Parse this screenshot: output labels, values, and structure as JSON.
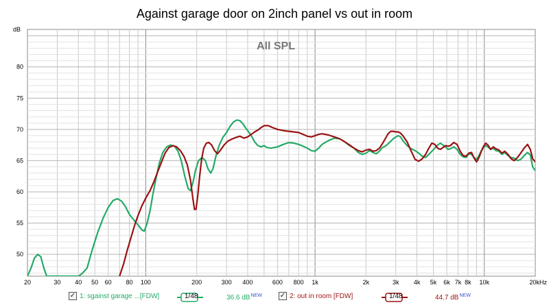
{
  "chart_data": {
    "type": "line",
    "title": "Against garage door on 2inch panel vs out in room",
    "plot_label": "All SPL",
    "ylabel": "dB",
    "xscale": "log",
    "xlim": [
      20,
      20000
    ],
    "ylim": [
      46.5,
      86
    ],
    "y_ticks": [
      50,
      55,
      60,
      65,
      70,
      75,
      80
    ],
    "x_ticks": [
      {
        "v": 20,
        "t": "20"
      },
      {
        "v": 30,
        "t": "30"
      },
      {
        "v": 40,
        "t": "40"
      },
      {
        "v": 50,
        "t": "50"
      },
      {
        "v": 60,
        "t": "60"
      },
      {
        "v": 80,
        "t": "80"
      },
      {
        "v": 100,
        "t": "100"
      },
      {
        "v": 200,
        "t": "200"
      },
      {
        "v": 300,
        "t": "300"
      },
      {
        "v": 400,
        "t": "400"
      },
      {
        "v": 600,
        "t": "600"
      },
      {
        "v": 800,
        "t": "800"
      },
      {
        "v": 1000,
        "t": "1k"
      },
      {
        "v": 2000,
        "t": "2k"
      },
      {
        "v": 3000,
        "t": "3k"
      },
      {
        "v": 4000,
        "t": "4k"
      },
      {
        "v": 5000,
        "t": "5k"
      },
      {
        "v": 6000,
        "t": "6k"
      },
      {
        "v": 7000,
        "t": "7k"
      },
      {
        "v": 8000,
        "t": "8k"
      },
      {
        "v": 10000,
        "t": "10k"
      },
      {
        "v": 20000,
        "t": "20kHz"
      }
    ],
    "grid": true,
    "series": [
      {
        "name": "1: sgainst garage ...[FDW]",
        "color": "#22aa66",
        "points": [
          [
            20,
            46.5
          ],
          [
            21,
            47.8
          ],
          [
            22,
            49.4
          ],
          [
            23,
            50.0
          ],
          [
            24,
            49.6
          ],
          [
            25,
            47.8
          ],
          [
            26,
            46.5
          ],
          [
            40,
            46.5
          ],
          [
            42,
            46.9
          ],
          [
            45,
            47.8
          ],
          [
            48,
            50.5
          ],
          [
            52,
            53.5
          ],
          [
            56,
            55.8
          ],
          [
            60,
            57.5
          ],
          [
            64,
            58.6
          ],
          [
            68,
            58.9
          ],
          [
            72,
            58.5
          ],
          [
            76,
            57.6
          ],
          [
            80,
            56.4
          ],
          [
            85,
            55.5
          ],
          [
            90,
            54.7
          ],
          [
            95,
            53.9
          ],
          [
            98,
            53.7
          ],
          [
            102,
            55.0
          ],
          [
            106,
            57.0
          ],
          [
            110,
            59.5
          ],
          [
            115,
            62.2
          ],
          [
            120,
            64.5
          ],
          [
            126,
            66.3
          ],
          [
            133,
            67.2
          ],
          [
            140,
            67.5
          ],
          [
            148,
            67.3
          ],
          [
            155,
            66.5
          ],
          [
            162,
            65.0
          ],
          [
            170,
            62.5
          ],
          [
            178,
            60.5
          ],
          [
            184,
            60.2
          ],
          [
            190,
            61.5
          ],
          [
            197,
            63.5
          ],
          [
            205,
            65.0
          ],
          [
            215,
            65.5
          ],
          [
            225,
            65.0
          ],
          [
            233,
            63.7
          ],
          [
            242,
            63.0
          ],
          [
            250,
            63.8
          ],
          [
            260,
            65.8
          ],
          [
            272,
            67.5
          ],
          [
            285,
            68.7
          ],
          [
            300,
            69.5
          ],
          [
            315,
            70.5
          ],
          [
            330,
            71.2
          ],
          [
            345,
            71.5
          ],
          [
            360,
            71.4
          ],
          [
            375,
            70.9
          ],
          [
            390,
            70.2
          ],
          [
            405,
            69.6
          ],
          [
            420,
            69.0
          ],
          [
            440,
            68.0
          ],
          [
            460,
            67.4
          ],
          [
            480,
            67.2
          ],
          [
            500,
            67.4
          ],
          [
            520,
            67.1
          ],
          [
            550,
            67.0
          ],
          [
            600,
            67.2
          ],
          [
            650,
            67.6
          ],
          [
            700,
            67.9
          ],
          [
            750,
            67.8
          ],
          [
            800,
            67.6
          ],
          [
            850,
            67.3
          ],
          [
            900,
            67.0
          ],
          [
            950,
            66.6
          ],
          [
            1000,
            66.5
          ],
          [
            1050,
            67.0
          ],
          [
            1100,
            67.6
          ],
          [
            1200,
            68.2
          ],
          [
            1300,
            68.6
          ],
          [
            1400,
            68.5
          ],
          [
            1500,
            68.0
          ],
          [
            1600,
            67.4
          ],
          [
            1700,
            67.0
          ],
          [
            1800,
            66.3
          ],
          [
            1900,
            66.0
          ],
          [
            2000,
            66.2
          ],
          [
            2100,
            66.6
          ],
          [
            2200,
            66.3
          ],
          [
            2300,
            66.1
          ],
          [
            2400,
            66.5
          ],
          [
            2500,
            67.1
          ],
          [
            2600,
            67.3
          ],
          [
            2700,
            67.7
          ],
          [
            2800,
            68.1
          ],
          [
            2900,
            68.5
          ],
          [
            3000,
            68.8
          ],
          [
            3100,
            69.0
          ],
          [
            3200,
            68.8
          ],
          [
            3300,
            68.2
          ],
          [
            3500,
            67.4
          ],
          [
            3700,
            66.9
          ],
          [
            3900,
            66.6
          ],
          [
            4100,
            66.2
          ],
          [
            4300,
            65.7
          ],
          [
            4500,
            65.5
          ],
          [
            4700,
            66.0
          ],
          [
            4900,
            66.5
          ],
          [
            5100,
            67.0
          ],
          [
            5300,
            67.5
          ],
          [
            5500,
            67.8
          ],
          [
            5700,
            67.5
          ],
          [
            5900,
            67.2
          ],
          [
            6100,
            66.8
          ],
          [
            6300,
            66.9
          ],
          [
            6600,
            67.2
          ],
          [
            6900,
            66.8
          ],
          [
            7200,
            66.0
          ],
          [
            7500,
            65.6
          ],
          [
            7800,
            65.5
          ],
          [
            8100,
            66.1
          ],
          [
            8400,
            66.0
          ],
          [
            8700,
            65.5
          ],
          [
            9000,
            65.2
          ],
          [
            9300,
            65.8
          ],
          [
            9600,
            66.6
          ],
          [
            9900,
            67.1
          ],
          [
            10200,
            67.4
          ],
          [
            10500,
            67.2
          ],
          [
            10900,
            66.8
          ],
          [
            11300,
            67.0
          ],
          [
            11700,
            66.6
          ],
          [
            12200,
            66.5
          ],
          [
            12700,
            66.0
          ],
          [
            13200,
            66.3
          ],
          [
            13800,
            65.8
          ],
          [
            14400,
            65.5
          ],
          [
            15000,
            65.4
          ],
          [
            15700,
            65.0
          ],
          [
            16400,
            65.2
          ],
          [
            17200,
            65.8
          ],
          [
            18000,
            66.3
          ],
          [
            18700,
            65.9
          ],
          [
            19300,
            64.0
          ],
          [
            20000,
            63.4
          ]
        ]
      },
      {
        "name": "2: out in room [FDW]",
        "color": "#9b1111",
        "points": [
          [
            70,
            46.5
          ],
          [
            74,
            48.5
          ],
          [
            78,
            50.8
          ],
          [
            82,
            52.8
          ],
          [
            86,
            54.7
          ],
          [
            90,
            56.2
          ],
          [
            95,
            57.8
          ],
          [
            100,
            59.0
          ],
          [
            106,
            60.2
          ],
          [
            112,
            61.7
          ],
          [
            118,
            63.3
          ],
          [
            124,
            64.8
          ],
          [
            130,
            66.2
          ],
          [
            137,
            67.1
          ],
          [
            145,
            67.4
          ],
          [
            152,
            67.2
          ],
          [
            160,
            66.6
          ],
          [
            168,
            65.7
          ],
          [
            176,
            64.3
          ],
          [
            184,
            61.8
          ],
          [
            190,
            58.8
          ],
          [
            194,
            57.2
          ],
          [
            198,
            57.2
          ],
          [
            203,
            59.5
          ],
          [
            208,
            62.5
          ],
          [
            214,
            65.3
          ],
          [
            220,
            67.0
          ],
          [
            228,
            67.8
          ],
          [
            236,
            67.9
          ],
          [
            245,
            67.5
          ],
          [
            255,
            66.6
          ],
          [
            265,
            66.1
          ],
          [
            275,
            66.6
          ],
          [
            290,
            67.5
          ],
          [
            305,
            68.1
          ],
          [
            320,
            68.4
          ],
          [
            340,
            68.7
          ],
          [
            360,
            68.9
          ],
          [
            380,
            68.6
          ],
          [
            400,
            68.8
          ],
          [
            420,
            69.2
          ],
          [
            440,
            69.6
          ],
          [
            460,
            69.9
          ],
          [
            480,
            70.3
          ],
          [
            500,
            70.6
          ],
          [
            530,
            70.6
          ],
          [
            560,
            70.3
          ],
          [
            600,
            70.0
          ],
          [
            650,
            69.8
          ],
          [
            700,
            69.7
          ],
          [
            750,
            69.6
          ],
          [
            800,
            69.5
          ],
          [
            850,
            69.2
          ],
          [
            900,
            68.9
          ],
          [
            950,
            68.8
          ],
          [
            1000,
            69.0
          ],
          [
            1050,
            69.2
          ],
          [
            1100,
            69.3
          ],
          [
            1200,
            69.1
          ],
          [
            1300,
            68.8
          ],
          [
            1400,
            68.5
          ],
          [
            1500,
            68.0
          ],
          [
            1600,
            67.5
          ],
          [
            1700,
            67.0
          ],
          [
            1800,
            66.6
          ],
          [
            1900,
            66.4
          ],
          [
            2000,
            66.7
          ],
          [
            2100,
            66.8
          ],
          [
            2200,
            66.5
          ],
          [
            2300,
            66.6
          ],
          [
            2400,
            67.0
          ],
          [
            2500,
            67.7
          ],
          [
            2600,
            68.5
          ],
          [
            2700,
            69.3
          ],
          [
            2800,
            69.7
          ],
          [
            2900,
            69.7
          ],
          [
            3000,
            69.6
          ],
          [
            3100,
            69.6
          ],
          [
            3200,
            69.4
          ],
          [
            3300,
            69.0
          ],
          [
            3500,
            68.0
          ],
          [
            3700,
            66.5
          ],
          [
            3900,
            65.2
          ],
          [
            4100,
            64.9
          ],
          [
            4300,
            65.3
          ],
          [
            4500,
            66.0
          ],
          [
            4700,
            67.0
          ],
          [
            4900,
            67.8
          ],
          [
            5100,
            67.6
          ],
          [
            5300,
            67.0
          ],
          [
            5500,
            66.8
          ],
          [
            5700,
            67.1
          ],
          [
            5900,
            67.4
          ],
          [
            6100,
            67.3
          ],
          [
            6300,
            67.4
          ],
          [
            6600,
            67.9
          ],
          [
            6900,
            67.6
          ],
          [
            7200,
            66.5
          ],
          [
            7500,
            65.8
          ],
          [
            7800,
            65.7
          ],
          [
            8100,
            66.2
          ],
          [
            8400,
            66.3
          ],
          [
            8700,
            65.4
          ],
          [
            9000,
            64.8
          ],
          [
            9300,
            65.5
          ],
          [
            9600,
            66.5
          ],
          [
            9900,
            67.3
          ],
          [
            10200,
            67.8
          ],
          [
            10500,
            67.5
          ],
          [
            10900,
            66.8
          ],
          [
            11300,
            67.2
          ],
          [
            11700,
            66.9
          ],
          [
            12200,
            66.7
          ],
          [
            12700,
            66.2
          ],
          [
            13200,
            66.5
          ],
          [
            13800,
            66.0
          ],
          [
            14400,
            65.3
          ],
          [
            15000,
            65.0
          ],
          [
            15700,
            65.5
          ],
          [
            16400,
            66.2
          ],
          [
            17200,
            67.0
          ],
          [
            18000,
            67.6
          ],
          [
            18700,
            66.8
          ],
          [
            19300,
            65.3
          ],
          [
            20000,
            64.8
          ]
        ]
      }
    ]
  },
  "legend": [
    {
      "label": "1: sgainst garage ...[FDW]",
      "smoothing": "1/48",
      "level": "36.6 dB",
      "level_badge": "NEW",
      "color": "#22aa66",
      "checked": "✓"
    },
    {
      "label": "2: out in room [FDW]",
      "smoothing": "1/48",
      "level": "44.7 dB",
      "level_badge": "NEW",
      "color": "#9b1111",
      "checked": "✓"
    }
  ]
}
